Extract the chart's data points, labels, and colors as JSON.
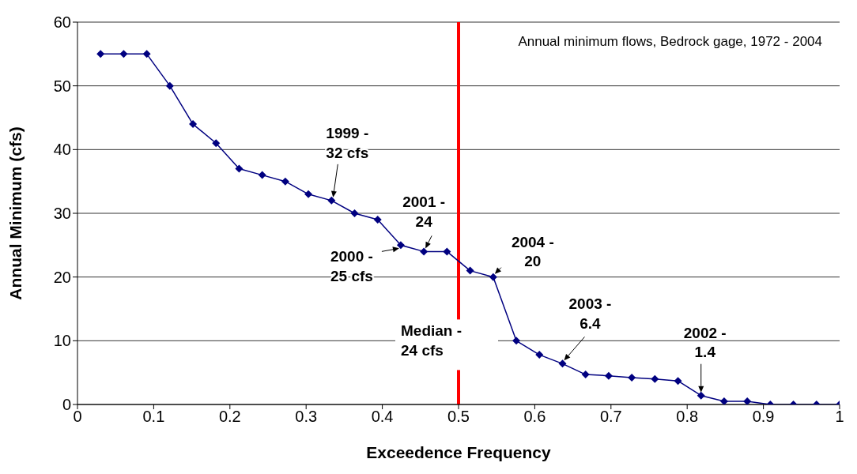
{
  "chart_data": {
    "type": "line",
    "title": "Annual minimum flows, Bedrock gage, 1972 - 2004",
    "xlabel": "Exceedence Frequency",
    "ylabel": "Annual Minimum (cfs)",
    "x": [
      0.0303,
      0.0606,
      0.0909,
      0.1212,
      0.1515,
      0.1818,
      0.2121,
      0.2424,
      0.2727,
      0.303,
      0.3333,
      0.3636,
      0.3939,
      0.4242,
      0.4545,
      0.4848,
      0.5152,
      0.5455,
      0.5758,
      0.6061,
      0.6364,
      0.6667,
      0.697,
      0.7273,
      0.7576,
      0.7879,
      0.8182,
      0.8485,
      0.8788,
      0.9091,
      0.9394,
      0.9697,
      1.0
    ],
    "series": [
      {
        "color": "#000080",
        "values": [
          55,
          55,
          55,
          50,
          44,
          41,
          37,
          36,
          35,
          33,
          32,
          30,
          29,
          25,
          24,
          24,
          21,
          20,
          10,
          7.8,
          6.4,
          4.7,
          4.5,
          4.2,
          4,
          3.7,
          1.4,
          0.5,
          0.5,
          0,
          0,
          0,
          0
        ]
      }
    ],
    "xlim": [
      0,
      1
    ],
    "xticks": [
      0,
      0.1,
      0.2,
      0.3,
      0.4,
      0.5,
      0.6,
      0.7,
      0.8,
      0.9,
      1
    ],
    "ylim": [
      0,
      60
    ],
    "yticks": [
      0,
      10,
      20,
      30,
      40,
      50,
      60
    ],
    "grid": "y",
    "marker": "diamond",
    "line_style": "solid",
    "legend": false,
    "ref_lines": [
      {
        "axis": "x",
        "value": 0.5,
        "label": "Median -\n24 cfs",
        "color": "#ff0000"
      }
    ],
    "annotations": [
      {
        "text": "1999 -\n32 cfs",
        "x": 0.3333,
        "y": 32
      },
      {
        "text": "2001 -\n24",
        "x": 0.4545,
        "y": 24
      },
      {
        "text": "2000 -\n25 cfs",
        "x": 0.4242,
        "y": 25
      },
      {
        "text": "2004 -\n20",
        "x": 0.5455,
        "y": 20
      },
      {
        "text": "2003 -\n6.4",
        "x": 0.6364,
        "y": 6.4
      },
      {
        "text": "2002 -\n1.4",
        "x": 0.8182,
        "y": 1.4
      }
    ]
  }
}
